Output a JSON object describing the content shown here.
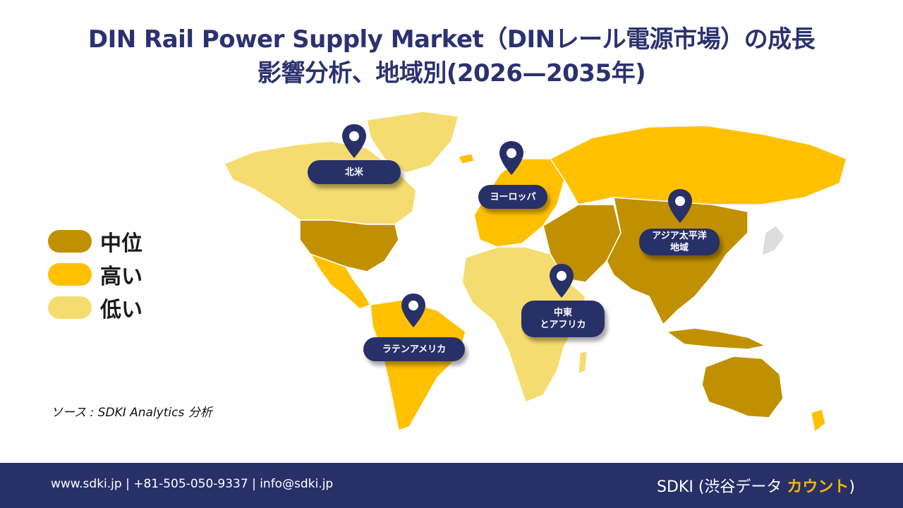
{
  "title": {
    "line1": "DIN Rail Power Supply Market（DINレール電源市場）の成長",
    "line2": "影響分析、地域別(2026—2035年)"
  },
  "legend": [
    {
      "label": "中位",
      "color": "#c09000"
    },
    {
      "label": "高い",
      "color": "#ffc000"
    },
    {
      "label": "低い",
      "color": "#f5dc70"
    }
  ],
  "regions": {
    "north_america": "北米",
    "europe": "ヨーロッパ",
    "asia_pacific_line1": "アジア太平洋",
    "asia_pacific_line2": "地域",
    "middle_east_line1": "中東",
    "middle_east_line2": "とアフリカ",
    "latin_america": "ラテンアメリカ"
  },
  "source": "ソース : SDKI Analytics 分析",
  "footer": {
    "contact": "www.sdki.jp  | +81-505-050-9337 | info@sdki.jp",
    "brand_prefix": "SDKI (渋谷データ ",
    "brand_accent": "カウント",
    "brand_suffix": ")"
  },
  "colors": {
    "navy": "#283068",
    "medium": "#c09000",
    "high": "#ffc000",
    "low": "#f5dc70"
  }
}
